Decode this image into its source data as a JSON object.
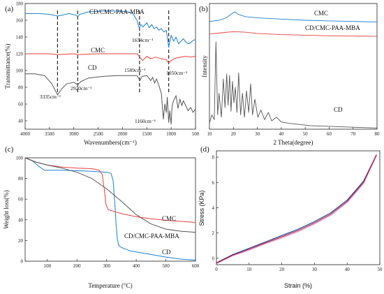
{
  "chart_data": [
    {
      "panel": "(a)",
      "type": "line",
      "xlabel": "Wavenumbers(cm⁻¹)",
      "ylabel": "Transmittance(%)",
      "xlim": [
        4000,
        500
      ],
      "ylim": [
        30,
        180
      ],
      "xticks": [
        4000,
        3500,
        3000,
        2500,
        2000,
        1500,
        1000,
        500
      ],
      "yticks": [
        40,
        60,
        80,
        100,
        120,
        140,
        160,
        180
      ],
      "series": [
        {
          "name": "CD/CMC-PAA-MBA",
          "color": "#1a7fd6",
          "x": [
            4000,
            3700,
            3500,
            3400,
            3335,
            3250,
            3100,
            2950,
            2920,
            2880,
            2700,
            2400,
            2100,
            1900,
            1800,
            1700,
            1654,
            1620,
            1580,
            1500,
            1450,
            1400,
            1350,
            1300,
            1250,
            1200,
            1150,
            1100,
            1050,
            1000,
            950,
            900,
            850,
            800,
            750,
            700,
            650,
            600,
            550,
            500
          ],
          "y": [
            168,
            168,
            167,
            166,
            165,
            166,
            168,
            166,
            164,
            167,
            170,
            171,
            171,
            170,
            169,
            160,
            150,
            155,
            152,
            157,
            151,
            155,
            150,
            152,
            148,
            150,
            146,
            148,
            128,
            142,
            135,
            140,
            132,
            135,
            138,
            134,
            132,
            133,
            136,
            137
          ]
        },
        {
          "name": "CMC",
          "color": "#e8413a",
          "x": [
            4000,
            3500,
            3335,
            3000,
            2920,
            2500,
            2000,
            1700,
            1589,
            1500,
            1420,
            1320,
            1200,
            1100,
            1050,
            1000,
            900,
            800,
            700,
            600,
            500
          ],
          "y": [
            120,
            120,
            119,
            120,
            119,
            120,
            120,
            120,
            112,
            117,
            114,
            116,
            114,
            113,
            109,
            112,
            115,
            116,
            117,
            116,
            117
          ]
        },
        {
          "name": "CD",
          "color": "#555555",
          "x": [
            4000,
            3800,
            3600,
            3450,
            3335,
            3250,
            3150,
            3000,
            2920,
            2850,
            2700,
            2400,
            2100,
            1900,
            1700,
            1640,
            1600,
            1500,
            1420,
            1380,
            1340,
            1300,
            1240,
            1200,
            1160,
            1130,
            1100,
            1080,
            1050,
            1030,
            1000,
            980,
            950,
            900,
            860,
            820,
            780,
            750,
            700,
            650,
            600,
            550,
            500
          ],
          "y": [
            96,
            96,
            94,
            84,
            71,
            78,
            84,
            86,
            83,
            87,
            91,
            93,
            94,
            94,
            94,
            88,
            93,
            94,
            88,
            92,
            85,
            90,
            80,
            72,
            42,
            60,
            50,
            68,
            38,
            52,
            36,
            58,
            64,
            70,
            55,
            66,
            58,
            64,
            58,
            52,
            56,
            50,
            54
          ]
        }
      ],
      "labels": [
        "CD/CMC-PAA-MBA",
        "CMC",
        "CD"
      ],
      "annotations": [
        "3335cm⁻¹",
        "2920cm⁻¹",
        "1654cm⁻¹",
        "1589cm⁻¹",
        "1050cm⁻¹",
        "1160cm⁻¹"
      ],
      "vlines": [
        3335,
        2920,
        1650,
        1050
      ]
    },
    {
      "panel": "(b)",
      "type": "line",
      "xlabel": "2 Theta(degree)",
      "ylabel": "Intensity",
      "xlim": [
        10,
        80
      ],
      "xticks": [
        10,
        20,
        30,
        40,
        50,
        60,
        70,
        80
      ],
      "series": [
        {
          "name": "CMC",
          "color": "#1a7fd6",
          "x": [
            10,
            14,
            17,
            19,
            20.5,
            22,
            25,
            30,
            40,
            50,
            60,
            70,
            80
          ],
          "y": [
            0.9,
            0.91,
            0.93,
            0.96,
            0.98,
            0.96,
            0.94,
            0.93,
            0.92,
            0.91,
            0.905,
            0.9,
            0.895
          ]
        },
        {
          "name": "CD/CMC-PAA-MBA",
          "color": "#e8413a",
          "x": [
            10,
            15,
            20,
            25,
            30,
            40,
            50,
            60,
            70,
            80
          ],
          "y": [
            0.795,
            0.805,
            0.815,
            0.81,
            0.8,
            0.79,
            0.785,
            0.78,
            0.778,
            0.775
          ]
        },
        {
          "name": "CD",
          "color": "#555555",
          "x": [
            10,
            11,
            12,
            12.7,
            13.4,
            14,
            15,
            15.8,
            16.5,
            17.2,
            17.8,
            18.4,
            19,
            19.6,
            20.2,
            20.8,
            21.5,
            22.2,
            23,
            23.8,
            24.6,
            25.5,
            26.4,
            27.2,
            28,
            29,
            30.2,
            31.5,
            33,
            34.6,
            36,
            38,
            40,
            43,
            47,
            52,
            58,
            65,
            72,
            80
          ],
          "y": [
            0.05,
            0.12,
            0.08,
            0.73,
            0.12,
            0.3,
            0.1,
            0.42,
            0.18,
            0.46,
            0.2,
            0.45,
            0.15,
            0.4,
            0.22,
            0.35,
            0.14,
            0.47,
            0.12,
            0.3,
            0.1,
            0.32,
            0.14,
            0.38,
            0.12,
            0.25,
            0.1,
            0.16,
            0.08,
            0.14,
            0.07,
            0.1,
            0.06,
            0.05,
            0.04,
            0.03,
            0.025,
            0.02,
            0.015,
            0.01
          ]
        }
      ],
      "labels": [
        "CMC",
        "CD/CMC-PAA-MBA",
        "CD"
      ]
    },
    {
      "panel": "(c)",
      "type": "line",
      "xlabel": "Temperature (°C)",
      "ylabel": "Weight loss(%)",
      "xlim": [
        25,
        600
      ],
      "ylim": [
        0,
        100
      ],
      "xticks": [
        100,
        200,
        300,
        400,
        500,
        600
      ],
      "yticks": [
        0,
        20,
        40,
        60,
        80,
        100
      ],
      "series": [
        {
          "name": "CD",
          "color": "#1a7fd6",
          "x": [
            25,
            50,
            70,
            90,
            150,
            250,
            300,
            315,
            322,
            328,
            332,
            336,
            340,
            345,
            360,
            380,
            420,
            460,
            500,
            550,
            600
          ],
          "y": [
            100,
            97,
            92,
            88,
            88,
            87,
            86,
            85,
            78,
            55,
            35,
            22,
            16,
            14,
            12,
            10,
            8,
            6,
            4,
            2,
            1
          ]
        },
        {
          "name": "CMC",
          "color": "#e8413a",
          "x": [
            25,
            60,
            100,
            150,
            200,
            250,
            275,
            285,
            292,
            298,
            305,
            320,
            350,
            400,
            450,
            500,
            550,
            600
          ],
          "y": [
            100,
            96,
            93,
            91,
            90,
            89.5,
            88,
            84,
            70,
            55,
            50,
            48.5,
            46,
            43,
            41,
            39.5,
            38.5,
            37.5
          ]
        },
        {
          "name": "CD/CMC-PAA-MBA",
          "color": "#555555",
          "x": [
            25,
            60,
            100,
            150,
            200,
            250,
            300,
            350,
            400,
            450,
            500,
            550,
            600
          ],
          "y": [
            100,
            96,
            93,
            90,
            86,
            80,
            70,
            58,
            45,
            36,
            31,
            29,
            28
          ]
        }
      ],
      "labels": [
        "CMC",
        "CD/CMC-PAA-MBA",
        "CD"
      ]
    },
    {
      "panel": "(d)",
      "type": "line",
      "xlabel": "Strain (%)",
      "ylabel": "Stress (KPa)",
      "xlim": [
        0,
        50
      ],
      "ylim": [
        -0.5,
        8.5
      ],
      "xticks": [
        0,
        10,
        20,
        30,
        40,
        50
      ],
      "yticks": [
        0,
        2,
        4,
        6,
        8
      ],
      "series": [
        {
          "name": "",
          "color": "#c9a3c0",
          "x": [
            0,
            5,
            10,
            15,
            20,
            25,
            30,
            35,
            40,
            45,
            49
          ],
          "y": [
            -0.42,
            0.2,
            0.65,
            1.15,
            1.6,
            2.1,
            2.7,
            3.4,
            4.4,
            5.9,
            8.1
          ]
        },
        {
          "name": "",
          "color": "#1a3fa0",
          "x": [
            0,
            5,
            10,
            15,
            20,
            25,
            30,
            35,
            40,
            45,
            49
          ],
          "y": [
            -0.35,
            0.3,
            0.8,
            1.3,
            1.8,
            2.3,
            2.9,
            3.6,
            4.6,
            6.1,
            8.2
          ]
        },
        {
          "name": "",
          "color": "#c0184a",
          "x": [
            0,
            5,
            10,
            15,
            20,
            25,
            30,
            35,
            40,
            45,
            49
          ],
          "y": [
            -0.38,
            0.25,
            0.72,
            1.22,
            1.7,
            2.2,
            2.8,
            3.5,
            4.5,
            6.0,
            8.2
          ]
        }
      ]
    }
  ]
}
